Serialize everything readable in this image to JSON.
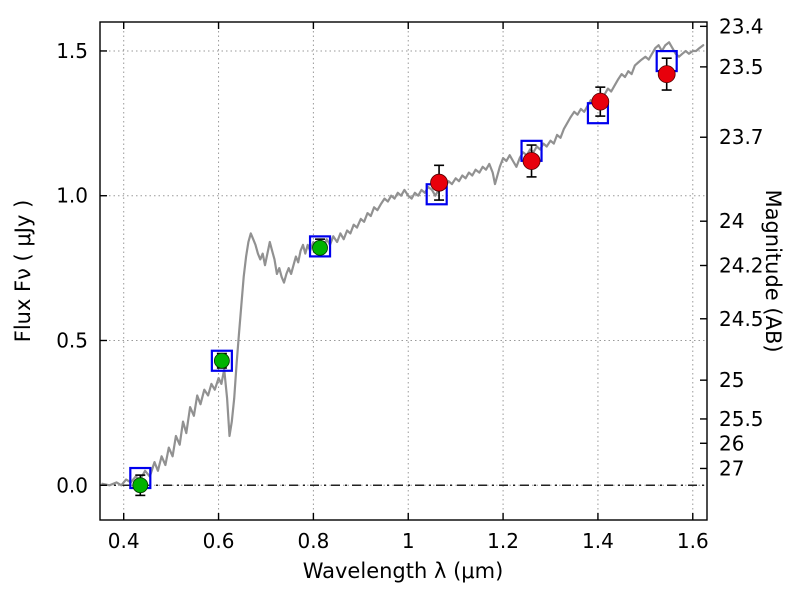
{
  "page": {
    "background": "#ffffff"
  },
  "chart_data": {
    "type": "line",
    "title": "",
    "xlabel": "Wavelength  λ (μm)",
    "ylabel_left": "Flux  Fν  ( μJy )",
    "ylabel_right": "Magnitude (AB)",
    "xlim": [
      0.35,
      1.63
    ],
    "ylim": [
      -0.12,
      1.6
    ],
    "grid": true,
    "zero_line": true,
    "legend": "none",
    "xticks": {
      "values": [
        0.4,
        0.6,
        0.8,
        1.0,
        1.2,
        1.4,
        1.6
      ],
      "labels": [
        "0.4",
        "0.6",
        "0.8",
        "1",
        "1.2",
        "1.4",
        "1.6"
      ]
    },
    "yticks_left": {
      "values": [
        0.0,
        0.5,
        1.0,
        1.5
      ],
      "labels": [
        "0.0",
        "0.5",
        "1.0",
        "1.5"
      ]
    },
    "right_ticks": [
      {
        "label": "23.4",
        "flux": 1.585
      },
      {
        "label": "23.5",
        "flux": 1.445
      },
      {
        "label": "23.7",
        "flux": 1.202
      },
      {
        "label": "24",
        "flux": 0.912
      },
      {
        "label": "24.2",
        "flux": 0.759
      },
      {
        "label": "24.5",
        "flux": 0.575
      },
      {
        "label": "25",
        "flux": 0.363
      },
      {
        "label": "25.5",
        "flux": 0.229
      },
      {
        "label": "26",
        "flux": 0.145
      },
      {
        "label": "27",
        "flux": 0.058
      }
    ],
    "colors": {
      "spectrum": "#919191",
      "model_square": "#0000ee",
      "observed_green": "#00b300",
      "observed_red": "#e8000b",
      "error_bar": "#000000",
      "grid": "#9a9a9a",
      "axis": "#000000"
    },
    "series": [
      {
        "name": "model-spectrum",
        "type": "line",
        "points": [
          [
            0.355,
            0.005
          ],
          [
            0.37,
            0.0
          ],
          [
            0.385,
            0.01
          ],
          [
            0.395,
            0.0
          ],
          [
            0.405,
            0.02
          ],
          [
            0.415,
            0.01
          ],
          [
            0.425,
            0.03
          ],
          [
            0.435,
            0.02
          ],
          [
            0.445,
            0.05
          ],
          [
            0.455,
            0.03
          ],
          [
            0.465,
            0.08
          ],
          [
            0.472,
            0.05
          ],
          [
            0.48,
            0.1
          ],
          [
            0.488,
            0.07
          ],
          [
            0.495,
            0.13
          ],
          [
            0.503,
            0.1
          ],
          [
            0.51,
            0.17
          ],
          [
            0.518,
            0.14
          ],
          [
            0.525,
            0.22
          ],
          [
            0.532,
            0.18
          ],
          [
            0.54,
            0.27
          ],
          [
            0.548,
            0.24
          ],
          [
            0.555,
            0.31
          ],
          [
            0.562,
            0.28
          ],
          [
            0.57,
            0.33
          ],
          [
            0.578,
            0.31
          ],
          [
            0.585,
            0.35
          ],
          [
            0.592,
            0.33
          ],
          [
            0.6,
            0.37
          ],
          [
            0.606,
            0.35
          ],
          [
            0.612,
            0.4
          ],
          [
            0.618,
            0.3
          ],
          [
            0.623,
            0.17
          ],
          [
            0.628,
            0.22
          ],
          [
            0.633,
            0.3
          ],
          [
            0.638,
            0.42
          ],
          [
            0.643,
            0.52
          ],
          [
            0.648,
            0.62
          ],
          [
            0.653,
            0.72
          ],
          [
            0.658,
            0.79
          ],
          [
            0.663,
            0.84
          ],
          [
            0.668,
            0.87
          ],
          [
            0.673,
            0.85
          ],
          [
            0.678,
            0.83
          ],
          [
            0.683,
            0.8
          ],
          [
            0.688,
            0.78
          ],
          [
            0.693,
            0.8
          ],
          [
            0.698,
            0.76
          ],
          [
            0.703,
            0.8
          ],
          [
            0.708,
            0.84
          ],
          [
            0.713,
            0.81
          ],
          [
            0.718,
            0.78
          ],
          [
            0.723,
            0.73
          ],
          [
            0.728,
            0.75
          ],
          [
            0.733,
            0.72
          ],
          [
            0.738,
            0.7
          ],
          [
            0.743,
            0.73
          ],
          [
            0.748,
            0.75
          ],
          [
            0.753,
            0.73
          ],
          [
            0.758,
            0.76
          ],
          [
            0.763,
            0.79
          ],
          [
            0.768,
            0.77
          ],
          [
            0.773,
            0.81
          ],
          [
            0.778,
            0.83
          ],
          [
            0.783,
            0.8
          ],
          [
            0.788,
            0.83
          ],
          [
            0.793,
            0.81
          ],
          [
            0.8,
            0.84
          ],
          [
            0.807,
            0.82
          ],
          [
            0.814,
            0.84
          ],
          [
            0.821,
            0.82
          ],
          [
            0.828,
            0.85
          ],
          [
            0.835,
            0.83
          ],
          [
            0.842,
            0.86
          ],
          [
            0.85,
            0.84
          ],
          [
            0.857,
            0.87
          ],
          [
            0.864,
            0.85
          ],
          [
            0.871,
            0.88
          ],
          [
            0.878,
            0.87
          ],
          [
            0.885,
            0.9
          ],
          [
            0.892,
            0.89
          ],
          [
            0.9,
            0.92
          ],
          [
            0.907,
            0.91
          ],
          [
            0.914,
            0.94
          ],
          [
            0.921,
            0.93
          ],
          [
            0.928,
            0.96
          ],
          [
            0.935,
            0.95
          ],
          [
            0.942,
            0.97
          ],
          [
            0.95,
            0.99
          ],
          [
            0.957,
            0.98
          ],
          [
            0.964,
            1.0
          ],
          [
            0.971,
            0.99
          ],
          [
            0.978,
            1.01
          ],
          [
            0.985,
            1.0
          ],
          [
            0.992,
            1.02
          ],
          [
            1.0,
            1.0
          ],
          [
            1.007,
            0.99
          ],
          [
            1.014,
            1.01
          ],
          [
            1.021,
            1.0
          ],
          [
            1.028,
            1.02
          ],
          [
            1.035,
            1.01
          ],
          [
            1.042,
            1.03
          ],
          [
            1.05,
            1.02
          ],
          [
            1.057,
            1.0
          ],
          [
            1.064,
            1.02
          ],
          [
            1.071,
            1.04
          ],
          [
            1.078,
            1.03
          ],
          [
            1.085,
            1.05
          ],
          [
            1.092,
            1.04
          ],
          [
            1.1,
            1.06
          ],
          [
            1.107,
            1.05
          ],
          [
            1.114,
            1.07
          ],
          [
            1.121,
            1.06
          ],
          [
            1.128,
            1.08
          ],
          [
            1.135,
            1.07
          ],
          [
            1.142,
            1.09
          ],
          [
            1.15,
            1.08
          ],
          [
            1.157,
            1.1
          ],
          [
            1.164,
            1.09
          ],
          [
            1.171,
            1.11
          ],
          [
            1.178,
            1.08
          ],
          [
            1.183,
            1.04
          ],
          [
            1.188,
            1.07
          ],
          [
            1.193,
            1.1
          ],
          [
            1.2,
            1.13
          ],
          [
            1.207,
            1.12
          ],
          [
            1.214,
            1.14
          ],
          [
            1.221,
            1.12
          ],
          [
            1.228,
            1.1
          ],
          [
            1.235,
            1.13
          ],
          [
            1.242,
            1.15
          ],
          [
            1.25,
            1.14
          ],
          [
            1.257,
            1.16
          ],
          [
            1.264,
            1.15
          ],
          [
            1.271,
            1.17
          ],
          [
            1.278,
            1.16
          ],
          [
            1.285,
            1.18
          ],
          [
            1.292,
            1.17
          ],
          [
            1.3,
            1.19
          ],
          [
            1.307,
            1.18
          ],
          [
            1.314,
            1.21
          ],
          [
            1.321,
            1.2
          ],
          [
            1.328,
            1.23
          ],
          [
            1.335,
            1.25
          ],
          [
            1.342,
            1.27
          ],
          [
            1.35,
            1.29
          ],
          [
            1.357,
            1.28
          ],
          [
            1.364,
            1.3
          ],
          [
            1.371,
            1.29
          ],
          [
            1.378,
            1.31
          ],
          [
            1.385,
            1.33
          ],
          [
            1.392,
            1.32
          ],
          [
            1.4,
            1.34
          ],
          [
            1.407,
            1.33
          ],
          [
            1.414,
            1.35
          ],
          [
            1.421,
            1.37
          ],
          [
            1.428,
            1.36
          ],
          [
            1.435,
            1.38
          ],
          [
            1.442,
            1.4
          ],
          [
            1.45,
            1.42
          ],
          [
            1.457,
            1.41
          ],
          [
            1.464,
            1.43
          ],
          [
            1.471,
            1.42
          ],
          [
            1.478,
            1.45
          ],
          [
            1.485,
            1.46
          ],
          [
            1.492,
            1.47
          ],
          [
            1.5,
            1.48
          ],
          [
            1.507,
            1.47
          ],
          [
            1.514,
            1.49
          ],
          [
            1.521,
            1.51
          ],
          [
            1.528,
            1.52
          ],
          [
            1.535,
            1.5
          ],
          [
            1.542,
            1.52
          ],
          [
            1.55,
            1.53
          ],
          [
            1.557,
            1.51
          ],
          [
            1.564,
            1.49
          ],
          [
            1.571,
            1.48
          ],
          [
            1.578,
            1.49
          ],
          [
            1.585,
            1.5
          ],
          [
            1.592,
            1.49
          ],
          [
            1.6,
            1.5
          ],
          [
            1.607,
            1.5
          ],
          [
            1.614,
            1.51
          ],
          [
            1.622,
            1.52
          ]
        ]
      },
      {
        "name": "model-photometry-squares",
        "type": "scatter-open-square",
        "points": [
          [
            0.435,
            0.025
          ],
          [
            0.607,
            0.43
          ],
          [
            0.814,
            0.825
          ],
          [
            1.06,
            1.005
          ],
          [
            1.26,
            1.155
          ],
          [
            1.4,
            1.285
          ],
          [
            1.545,
            1.465
          ]
        ]
      },
      {
        "name": "observed-optical-green",
        "type": "scatter-circle-errorbar",
        "points": [
          {
            "x": 0.435,
            "y": 0.0,
            "yerr": 0.035
          },
          {
            "x": 0.607,
            "y": 0.43,
            "yerr": 0.025
          },
          {
            "x": 0.814,
            "y": 0.82,
            "yerr": 0.03
          }
        ]
      },
      {
        "name": "observed-infrared-red",
        "type": "scatter-circle-errorbar",
        "points": [
          {
            "x": 1.065,
            "y": 1.045,
            "yerr": 0.06
          },
          {
            "x": 1.26,
            "y": 1.12,
            "yerr": 0.055
          },
          {
            "x": 1.405,
            "y": 1.325,
            "yerr": 0.05
          },
          {
            "x": 1.545,
            "y": 1.42,
            "yerr": 0.055
          }
        ]
      }
    ]
  }
}
